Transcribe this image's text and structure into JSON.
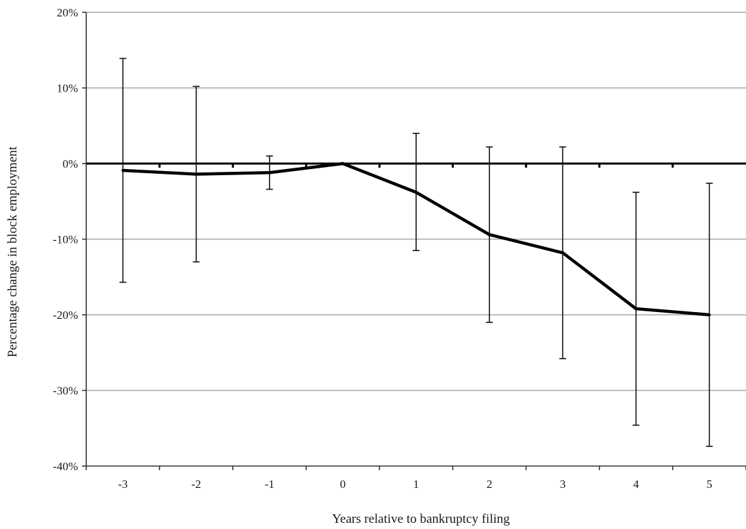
{
  "chart_data": {
    "type": "line",
    "title": "",
    "xlabel": "Years relative to bankruptcy filing",
    "ylabel": "Percentage change in block employment",
    "categories": [
      "-3",
      "-2",
      "-1",
      "0",
      "1",
      "2",
      "3",
      "4",
      "5"
    ],
    "ylim": [
      -40,
      20
    ],
    "yticks": [
      20,
      10,
      0,
      -10,
      -20,
      -30,
      -40
    ],
    "ytick_labels": [
      "20%",
      "10%",
      "0%",
      "-10%",
      "-20%",
      "-30%",
      "-40%"
    ],
    "grid": true,
    "legend": "none",
    "series": [
      {
        "values": [
          -0.9,
          -1.4,
          -1.2,
          0.0,
          -3.8,
          -9.4,
          -11.8,
          -19.2,
          -20.0
        ],
        "error_upper": [
          13.9,
          10.2,
          1.0,
          0.0,
          4.0,
          2.2,
          2.2,
          -3.8,
          -2.6
        ],
        "error_lower": [
          -15.7,
          -13.0,
          -3.4,
          0.0,
          -11.5,
          -21.0,
          -25.8,
          -34.6,
          -37.4
        ]
      }
    ]
  }
}
